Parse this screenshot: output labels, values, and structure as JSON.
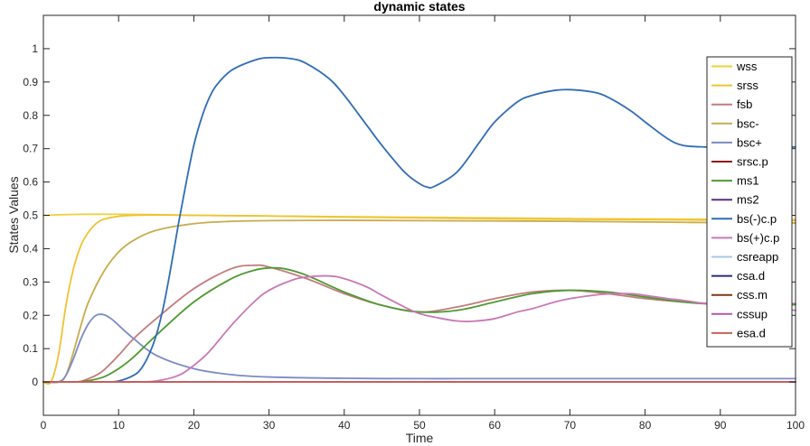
{
  "chart_data": {
    "type": "line",
    "title": "dynamic states",
    "xlabel": "Time",
    "ylabel": "States Values",
    "xlim": [
      0,
      100
    ],
    "ylim": [
      -0.1,
      1.1
    ],
    "xticks": [
      0,
      10,
      20,
      30,
      40,
      50,
      60,
      70,
      80,
      90,
      100
    ],
    "yticks": [
      0,
      0.1,
      0.2,
      0.3,
      0.4,
      0.5,
      0.6,
      0.7,
      0.8,
      0.9,
      1
    ],
    "legend_position": "top-right",
    "grid": false,
    "series": [
      {
        "name": "wss",
        "color": "#EDD13A",
        "x": [
          0,
          5,
          10,
          15,
          20,
          30,
          40,
          50,
          60,
          70,
          80,
          90,
          100
        ],
        "y": [
          0.5,
          0.503,
          0.503,
          0.502,
          0.5,
          0.498,
          0.496,
          0.494,
          0.492,
          0.49,
          0.489,
          0.488,
          0.487
        ]
      },
      {
        "name": "srss",
        "color": "#F1C232",
        "x": [
          0,
          1,
          2,
          3,
          4,
          5,
          6,
          7,
          8,
          10,
          12,
          15,
          20,
          30,
          40,
          60,
          80,
          100
        ],
        "y": [
          0,
          0,
          0.08,
          0.23,
          0.34,
          0.41,
          0.45,
          0.475,
          0.488,
          0.497,
          0.5,
          0.501,
          0.5,
          0.498,
          0.495,
          0.49,
          0.487,
          0.484
        ]
      },
      {
        "name": "fsb",
        "color": "#C47B7E",
        "x": [
          0,
          2,
          4,
          5,
          6,
          7,
          8,
          10,
          12,
          15,
          20,
          25,
          28,
          30,
          35,
          40,
          45,
          50,
          55,
          60,
          65,
          70,
          75,
          80,
          85,
          90,
          95,
          100
        ],
        "y": [
          0,
          0,
          0,
          0.002,
          0.01,
          0.02,
          0.035,
          0.08,
          0.13,
          0.19,
          0.28,
          0.34,
          0.35,
          0.345,
          0.31,
          0.265,
          0.23,
          0.21,
          0.225,
          0.25,
          0.27,
          0.275,
          0.265,
          0.25,
          0.24,
          0.235,
          0.235,
          0.235
        ]
      },
      {
        "name": "bsc-",
        "color": "#C8AC4E",
        "x": [
          0,
          2,
          3,
          4,
          5,
          6,
          8,
          10,
          12,
          15,
          20,
          25,
          30,
          40,
          50,
          60,
          70,
          80,
          90,
          100
        ],
        "y": [
          0,
          0,
          0.02,
          0.09,
          0.17,
          0.24,
          0.33,
          0.39,
          0.425,
          0.455,
          0.475,
          0.482,
          0.484,
          0.485,
          0.484,
          0.483,
          0.482,
          0.48,
          0.478,
          0.477
        ]
      },
      {
        "name": "bsc+",
        "color": "#7C8BC4",
        "x": [
          0,
          2,
          3,
          4,
          5,
          6,
          7,
          8,
          9,
          10,
          12,
          15,
          20,
          25,
          30,
          40,
          50,
          60,
          80,
          100
        ],
        "y": [
          0,
          0,
          0.02,
          0.07,
          0.13,
          0.175,
          0.2,
          0.202,
          0.19,
          0.17,
          0.13,
          0.08,
          0.04,
          0.022,
          0.015,
          0.011,
          0.01,
          0.01,
          0.01,
          0.01
        ]
      },
      {
        "name": "srsc.p",
        "color": "#8B1A1A",
        "x": [
          0,
          100
        ],
        "y": [
          0,
          0
        ]
      },
      {
        "name": "ms1",
        "color": "#4E9A32",
        "x": [
          0,
          4,
          6,
          8,
          10,
          12,
          15,
          20,
          25,
          28,
          30,
          32,
          35,
          40,
          45,
          50,
          55,
          60,
          65,
          70,
          75,
          80,
          85,
          90,
          95,
          100
        ],
        "y": [
          0,
          0,
          0.004,
          0.015,
          0.04,
          0.075,
          0.14,
          0.24,
          0.31,
          0.335,
          0.342,
          0.34,
          0.32,
          0.27,
          0.23,
          0.21,
          0.215,
          0.24,
          0.265,
          0.275,
          0.27,
          0.255,
          0.24,
          0.232,
          0.23,
          0.232
        ]
      },
      {
        "name": "ms2",
        "color": "#5A2D82",
        "x": [
          0,
          100
        ],
        "y": [
          0,
          0
        ]
      },
      {
        "name": "bs(-)c.p",
        "color": "#2F6DB5",
        "x": [
          0,
          8,
          10,
          12,
          13,
          14,
          15,
          16,
          17,
          18,
          19,
          20,
          21,
          22,
          23,
          25,
          28,
          30,
          33,
          35,
          38,
          40,
          43,
          45,
          48,
          50,
          51,
          52,
          55,
          58,
          60,
          63,
          65,
          68,
          70,
          73,
          75,
          78,
          80,
          83,
          85,
          88,
          90,
          93,
          95,
          100
        ],
        "y": [
          0,
          0,
          0.003,
          0.02,
          0.04,
          0.08,
          0.14,
          0.23,
          0.35,
          0.48,
          0.6,
          0.71,
          0.79,
          0.85,
          0.89,
          0.935,
          0.965,
          0.973,
          0.97,
          0.955,
          0.91,
          0.86,
          0.77,
          0.71,
          0.63,
          0.595,
          0.585,
          0.587,
          0.63,
          0.72,
          0.78,
          0.84,
          0.86,
          0.875,
          0.877,
          0.87,
          0.855,
          0.815,
          0.78,
          0.73,
          0.71,
          0.705,
          0.705,
          0.705,
          0.705,
          0.705
        ]
      },
      {
        "name": "bs(+)c.p",
        "color": "#C978B6",
        "x": [
          0,
          12,
          15,
          18,
          20,
          22,
          25,
          28,
          30,
          33,
          35,
          38,
          40,
          43,
          45,
          48,
          50,
          53,
          55,
          57,
          60,
          63,
          65,
          68,
          70,
          73,
          75,
          78,
          80,
          83,
          85,
          88,
          90,
          93,
          95,
          100
        ],
        "y": [
          0,
          0,
          0.003,
          0.02,
          0.05,
          0.09,
          0.17,
          0.24,
          0.275,
          0.305,
          0.315,
          0.318,
          0.31,
          0.285,
          0.26,
          0.225,
          0.205,
          0.19,
          0.183,
          0.182,
          0.19,
          0.21,
          0.22,
          0.24,
          0.25,
          0.26,
          0.264,
          0.265,
          0.26,
          0.25,
          0.245,
          0.235,
          0.232,
          0.23,
          0.225,
          0.215
        ]
      },
      {
        "name": "csreapp",
        "color": "#A9C8E8",
        "x": [
          0,
          100
        ],
        "y": [
          0,
          0
        ]
      },
      {
        "name": "csa.d",
        "color": "#2B2B7A",
        "x": [
          0,
          100
        ],
        "y": [
          0,
          0
        ]
      },
      {
        "name": "css.m",
        "color": "#7A3A12",
        "x": [
          0,
          100
        ],
        "y": [
          0,
          0
        ]
      },
      {
        "name": "cssup",
        "color": "#B25AA6",
        "x": [
          0,
          100
        ],
        "y": [
          0,
          0
        ]
      },
      {
        "name": "esa.d",
        "color": "#C9605A",
        "x": [
          0,
          100
        ],
        "y": [
          0,
          0
        ]
      }
    ]
  }
}
